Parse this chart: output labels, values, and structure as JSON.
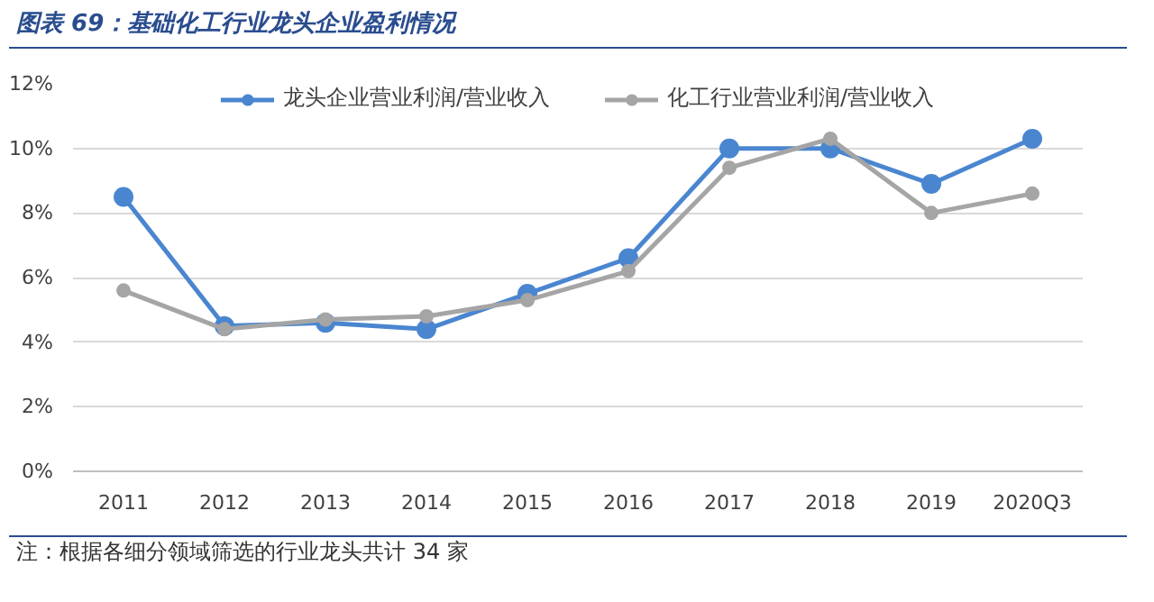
{
  "chart_data": {
    "type": "line",
    "title": "图表 69：基础化工行业龙头企业盈利情况",
    "categories": [
      "2011",
      "2012",
      "2013",
      "2014",
      "2015",
      "2016",
      "2017",
      "2018",
      "2019",
      "2020Q3"
    ],
    "series": [
      {
        "name": "龙头企业营业利润/营业收入",
        "color": "#4a86d0",
        "values": [
          8.5,
          4.5,
          4.6,
          4.4,
          5.5,
          6.6,
          10.0,
          10.0,
          8.9,
          10.3
        ]
      },
      {
        "name": "化工行业营业利润/营业收入",
        "color": "#a5a5a5",
        "values": [
          5.6,
          4.4,
          4.7,
          4.8,
          5.3,
          6.2,
          9.4,
          10.3,
          8.0,
          8.6
        ]
      }
    ],
    "ylim": [
      0,
      12
    ],
    "yticks": [
      {
        "value": 0,
        "label": "0%"
      },
      {
        "value": 2,
        "label": "2%"
      },
      {
        "value": 4,
        "label": "4%"
      },
      {
        "value": 6,
        "label": "6%"
      },
      {
        "value": 8,
        "label": "8%"
      },
      {
        "value": 10,
        "label": "10%"
      },
      {
        "value": 12,
        "label": "12%"
      }
    ],
    "grid": "y",
    "legend": "top",
    "marker": "circle",
    "line_style": "solid",
    "annotations": [
      "注：根据各细分领域筛选的行业龙头共计 34 家"
    ]
  }
}
